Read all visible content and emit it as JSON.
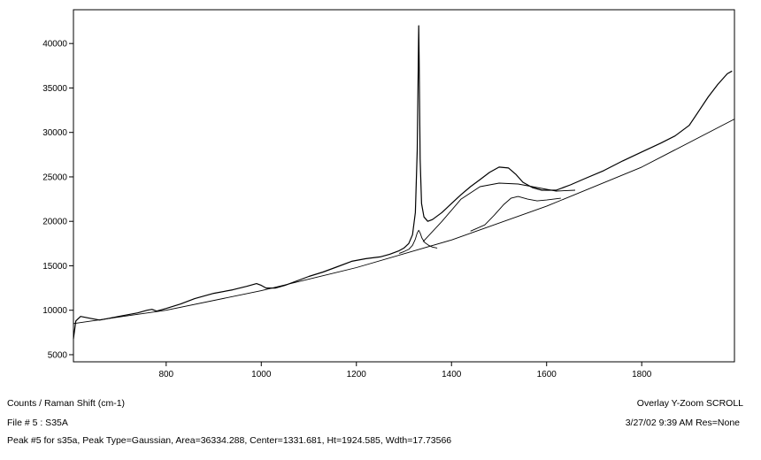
{
  "footer": {
    "axis_caption": "Counts / Raman Shift (cm-1)",
    "mode": "Overlay Y-Zoom SCROLL",
    "file_line": "File # 5 : S35A",
    "datetime": "3/27/02  9:39 AM  Res=None",
    "peak_line": "Peak #5 for s35a, Peak Type=Gaussian, Area=36334.288, Center=1331.681, Ht=1924.585, Wdth=17.73566"
  },
  "chart_data": {
    "type": "line",
    "title": "",
    "xlabel": "Raman Shift (cm-1)",
    "ylabel": "Counts",
    "xlim": [
      605,
      1995
    ],
    "ylim": [
      4200,
      43800
    ],
    "xticks": [
      800,
      1000,
      1200,
      1400,
      1600,
      1800
    ],
    "yticks": [
      5000,
      10000,
      15000,
      20000,
      25000,
      30000,
      35000,
      40000
    ],
    "grid": false,
    "series": [
      {
        "role": "spectrum",
        "x": [
          605,
          610,
          620,
          640,
          660,
          680,
          700,
          720,
          740,
          760,
          770,
          780,
          800,
          830,
          860,
          900,
          940,
          970,
          990,
          1000,
          1010,
          1030,
          1050,
          1080,
          1100,
          1130,
          1160,
          1190,
          1220,
          1250,
          1270,
          1290,
          1300,
          1310,
          1318,
          1324,
          1328,
          1330,
          1331,
          1332,
          1334,
          1337,
          1342,
          1350,
          1360,
          1380,
          1400,
          1420,
          1440,
          1460,
          1480,
          1500,
          1520,
          1535,
          1550,
          1570,
          1590,
          1620,
          1650,
          1680,
          1720,
          1760,
          1800,
          1840,
          1870,
          1900,
          1920,
          1940,
          1960,
          1980,
          1990
        ],
        "y": [
          6800,
          8800,
          9300,
          9100,
          8900,
          9100,
          9300,
          9500,
          9700,
          10000,
          10100,
          9900,
          10200,
          10700,
          11300,
          11900,
          12300,
          12700,
          13000,
          12800,
          12500,
          12500,
          12800,
          13400,
          13800,
          14300,
          14900,
          15500,
          15800,
          16000,
          16300,
          16700,
          17000,
          17500,
          18500,
          21000,
          28000,
          37000,
          42000,
          38000,
          27000,
          22000,
          20500,
          20000,
          20200,
          21000,
          22000,
          23000,
          23900,
          24700,
          25500,
          26100,
          26000,
          25300,
          24400,
          23800,
          23500,
          23500,
          24100,
          24800,
          25700,
          26800,
          27800,
          28800,
          29600,
          30800,
          32400,
          34000,
          35400,
          36600,
          36900
        ]
      },
      {
        "role": "baseline",
        "x": [
          605,
          800,
          1000,
          1200,
          1400,
          1600,
          1800,
          1995
        ],
        "y": [
          8500,
          10000,
          12200,
          14800,
          17900,
          21700,
          26100,
          31500
        ]
      },
      {
        "role": "fitted-peak",
        "x": [
          1290,
          1300,
          1310,
          1318,
          1324,
          1328,
          1331,
          1334,
          1338,
          1344,
          1352,
          1360,
          1370
        ],
        "y": [
          16400,
          16600,
          16850,
          17300,
          18000,
          18700,
          19000,
          18700,
          18100,
          17600,
          17300,
          17100,
          17000
        ]
      },
      {
        "role": "fitted-peak",
        "x": [
          1340,
          1380,
          1420,
          1460,
          1500,
          1540,
          1580,
          1620,
          1660
        ],
        "y": [
          17700,
          20000,
          22500,
          23900,
          24300,
          24200,
          23800,
          23400,
          23500
        ]
      },
      {
        "role": "fitted-peak",
        "x": [
          1440,
          1470,
          1490,
          1510,
          1525,
          1540,
          1560,
          1580,
          1600,
          1630
        ],
        "y": [
          18900,
          19600,
          20700,
          21900,
          22600,
          22800,
          22500,
          22300,
          22400,
          22600
        ]
      }
    ]
  }
}
